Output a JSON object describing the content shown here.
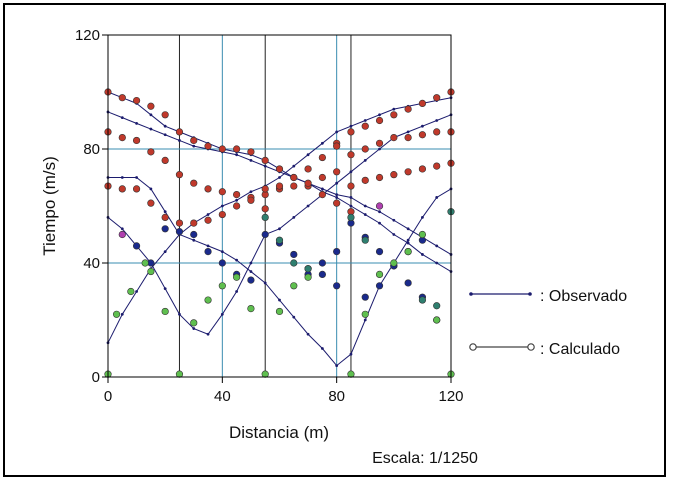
{
  "chart_data": {
    "type": "scatter",
    "title": "",
    "xlabel": "Distancia (m)",
    "ylabel": "Tiempo (m/s)",
    "note": "Escala: 1/1250",
    "xlim": [
      0,
      120
    ],
    "ylim": [
      0,
      120
    ],
    "x_ticks": [
      0,
      40,
      80,
      120
    ],
    "y_ticks": [
      0,
      40,
      80,
      120
    ],
    "gridlines_x": [
      25,
      40,
      55,
      80,
      85
    ],
    "gridlines_y": [
      40,
      80
    ],
    "legend": {
      "position": "right",
      "observado_label": ": Observado",
      "calculado_label": ": Calculado"
    },
    "colors": {
      "observado": "#1c1c6e",
      "grid": "#3a8cb0",
      "calc_red": "#c0392b",
      "calc_navy": "#1a2a8c",
      "calc_green": "#5fbf4f",
      "calc_teal": "#2f7f6f",
      "calc_magenta": "#b040b0"
    },
    "observado": [
      {
        "name": "",
        "points": [
          [
            0,
            100
          ],
          [
            5,
            98
          ],
          [
            10,
            96
          ],
          [
            15,
            92
          ],
          [
            20,
            88
          ],
          [
            25,
            86
          ],
          [
            30,
            84
          ],
          [
            35,
            82
          ],
          [
            40,
            80
          ],
          [
            45,
            79
          ],
          [
            50,
            78
          ],
          [
            55,
            76
          ],
          [
            60,
            73
          ],
          [
            65,
            70
          ],
          [
            70,
            68
          ],
          [
            75,
            65
          ],
          [
            80,
            63
          ],
          [
            85,
            60
          ],
          [
            90,
            57
          ],
          [
            95,
            54
          ],
          [
            100,
            50
          ],
          [
            105,
            47
          ],
          [
            110,
            43
          ],
          [
            115,
            40
          ],
          [
            120,
            37
          ]
        ]
      },
      {
        "name": "",
        "points": [
          [
            0,
            93
          ],
          [
            5,
            91
          ],
          [
            10,
            89
          ],
          [
            15,
            87
          ],
          [
            20,
            85
          ],
          [
            25,
            83
          ],
          [
            30,
            81
          ],
          [
            35,
            80
          ],
          [
            40,
            79
          ],
          [
            45,
            78
          ],
          [
            50,
            76
          ],
          [
            55,
            74
          ],
          [
            60,
            72
          ],
          [
            65,
            70
          ],
          [
            70,
            68
          ],
          [
            75,
            66
          ],
          [
            80,
            64
          ],
          [
            85,
            63
          ],
          [
            90,
            60
          ],
          [
            95,
            58
          ],
          [
            100,
            55
          ],
          [
            105,
            52
          ],
          [
            110,
            49
          ],
          [
            115,
            46
          ],
          [
            120,
            43
          ]
        ]
      },
      {
        "name": "",
        "points": [
          [
            0,
            70
          ],
          [
            5,
            70
          ],
          [
            10,
            70
          ],
          [
            15,
            66
          ],
          [
            20,
            58
          ],
          [
            25,
            50
          ],
          [
            30,
            48
          ],
          [
            35,
            46
          ],
          [
            40,
            44
          ],
          [
            45,
            41
          ],
          [
            50,
            37
          ],
          [
            55,
            33
          ],
          [
            60,
            27
          ],
          [
            65,
            21
          ],
          [
            70,
            15
          ],
          [
            75,
            10
          ],
          [
            80,
            4
          ],
          [
            85,
            8
          ],
          [
            90,
            20
          ],
          [
            95,
            32
          ],
          [
            100,
            40
          ],
          [
            105,
            48
          ],
          [
            110,
            56
          ],
          [
            115,
            63
          ],
          [
            120,
            66
          ]
        ]
      },
      {
        "name": "",
        "points": [
          [
            0,
            56
          ],
          [
            5,
            52
          ],
          [
            10,
            46
          ],
          [
            15,
            40
          ],
          [
            20,
            31
          ],
          [
            25,
            22
          ],
          [
            30,
            17
          ],
          [
            35,
            15
          ],
          [
            40,
            22
          ],
          [
            45,
            30
          ],
          [
            50,
            40
          ],
          [
            55,
            50
          ],
          [
            60,
            52
          ],
          [
            65,
            56
          ],
          [
            70,
            60
          ],
          [
            75,
            64
          ],
          [
            80,
            68
          ],
          [
            85,
            72
          ],
          [
            90,
            76
          ],
          [
            95,
            80
          ],
          [
            100,
            84
          ],
          [
            105,
            86
          ],
          [
            110,
            88
          ],
          [
            115,
            90
          ],
          [
            120,
            92
          ]
        ]
      },
      {
        "name": "",
        "points": [
          [
            0,
            12
          ],
          [
            5,
            22
          ],
          [
            10,
            30
          ],
          [
            15,
            38
          ],
          [
            20,
            44
          ],
          [
            25,
            50
          ],
          [
            30,
            54
          ],
          [
            35,
            57
          ],
          [
            40,
            60
          ],
          [
            45,
            62
          ],
          [
            50,
            65
          ],
          [
            55,
            67
          ],
          [
            60,
            70
          ],
          [
            65,
            74
          ],
          [
            70,
            78
          ],
          [
            75,
            82
          ],
          [
            80,
            86
          ],
          [
            85,
            88
          ],
          [
            90,
            90
          ],
          [
            95,
            92
          ],
          [
            100,
            94
          ],
          [
            105,
            95
          ],
          [
            110,
            96
          ],
          [
            115,
            97
          ],
          [
            120,
            98
          ]
        ]
      }
    ],
    "calculado": [
      {
        "name": "",
        "color": "calc_red",
        "points": [
          [
            0,
            100
          ],
          [
            5,
            98
          ],
          [
            10,
            97
          ],
          [
            15,
            95
          ],
          [
            20,
            92
          ],
          [
            25,
            86
          ],
          [
            30,
            83
          ],
          [
            35,
            81
          ],
          [
            40,
            80
          ],
          [
            45,
            80
          ],
          [
            50,
            79
          ],
          [
            55,
            76
          ],
          [
            60,
            73
          ],
          [
            65,
            70
          ],
          [
            70,
            67
          ],
          [
            75,
            64
          ],
          [
            80,
            61
          ],
          [
            85,
            58
          ]
        ]
      },
      {
        "name": "",
        "color": "calc_red",
        "points": [
          [
            0,
            86
          ],
          [
            5,
            84
          ],
          [
            10,
            83
          ],
          [
            15,
            79
          ],
          [
            20,
            76
          ],
          [
            25,
            71
          ],
          [
            30,
            68
          ],
          [
            35,
            66
          ],
          [
            40,
            65
          ],
          [
            45,
            64
          ],
          [
            50,
            63
          ],
          [
            55,
            59
          ]
        ]
      },
      {
        "name": "",
        "color": "calc_red",
        "points": [
          [
            0,
            67
          ],
          [
            5,
            66
          ],
          [
            10,
            66
          ],
          [
            15,
            61
          ],
          [
            20,
            56
          ],
          [
            25,
            54
          ],
          [
            30,
            54
          ],
          [
            35,
            55
          ],
          [
            40,
            57
          ],
          [
            45,
            60
          ],
          [
            50,
            62
          ],
          [
            55,
            64
          ],
          [
            60,
            66
          ],
          [
            65,
            67
          ],
          [
            70,
            68
          ],
          [
            75,
            70
          ],
          [
            80,
            72
          ]
        ]
      },
      {
        "name": "",
        "color": "calc_red",
        "points": [
          [
            80,
            82
          ],
          [
            85,
            86
          ],
          [
            90,
            88
          ],
          [
            95,
            90
          ],
          [
            100,
            92
          ],
          [
            105,
            94
          ],
          [
            110,
            96
          ],
          [
            115,
            98
          ],
          [
            120,
            100
          ]
        ]
      },
      {
        "name": "",
        "color": "calc_red",
        "points": [
          [
            55,
            66
          ],
          [
            60,
            67
          ],
          [
            65,
            70
          ],
          [
            70,
            73
          ],
          [
            75,
            77
          ],
          [
            80,
            81
          ],
          [
            85,
            78
          ],
          [
            90,
            80
          ],
          [
            95,
            82
          ],
          [
            100,
            84
          ],
          [
            105,
            84
          ],
          [
            110,
            85
          ],
          [
            115,
            86
          ],
          [
            120,
            86
          ]
        ]
      },
      {
        "name": "",
        "color": "calc_red",
        "points": [
          [
            85,
            67
          ],
          [
            90,
            69
          ],
          [
            95,
            70
          ],
          [
            100,
            71
          ],
          [
            105,
            72
          ],
          [
            110,
            73
          ],
          [
            115,
            74
          ],
          [
            120,
            75
          ]
        ]
      },
      {
        "name": "",
        "color": "calc_navy",
        "points": [
          [
            10,
            46
          ],
          [
            15,
            40
          ],
          [
            20,
            52
          ],
          [
            25,
            51
          ],
          [
            30,
            50
          ],
          [
            35,
            44
          ],
          [
            40,
            40
          ],
          [
            45,
            36
          ],
          [
            50,
            34
          ]
        ]
      },
      {
        "name": "",
        "color": "calc_navy",
        "points": [
          [
            55,
            50
          ],
          [
            60,
            47
          ],
          [
            65,
            43
          ],
          [
            70,
            38
          ],
          [
            75,
            36
          ],
          [
            80,
            32
          ],
          [
            85,
            54
          ],
          [
            90,
            49
          ],
          [
            95,
            44
          ],
          [
            100,
            39
          ],
          [
            105,
            33
          ],
          [
            110,
            28
          ],
          [
            115,
            20
          ]
        ]
      },
      {
        "name": "",
        "color": "calc_navy",
        "points": [
          [
            70,
            36
          ],
          [
            75,
            40
          ],
          [
            80,
            44
          ],
          [
            90,
            28
          ],
          [
            95,
            32
          ],
          [
            100,
            39
          ],
          [
            105,
            44
          ],
          [
            110,
            48
          ]
        ]
      },
      {
        "name": "",
        "color": "calc_green",
        "points": [
          [
            0,
            1
          ],
          [
            3,
            22
          ],
          [
            8,
            30
          ],
          [
            13,
            40
          ],
          [
            15,
            37
          ],
          [
            20,
            23
          ],
          [
            25,
            1
          ],
          [
            30,
            19
          ],
          [
            35,
            27
          ],
          [
            40,
            32
          ],
          [
            45,
            35
          ],
          [
            50,
            24
          ],
          [
            55,
            1
          ],
          [
            60,
            23
          ],
          [
            65,
            32
          ],
          [
            70,
            35
          ]
        ]
      },
      {
        "name": "",
        "color": "calc_green",
        "points": [
          [
            85,
            1
          ],
          [
            90,
            22
          ],
          [
            95,
            36
          ],
          [
            100,
            40
          ],
          [
            105,
            44
          ],
          [
            110,
            50
          ],
          [
            115,
            20
          ],
          [
            120,
            1
          ]
        ]
      },
      {
        "name": "",
        "color": "calc_teal",
        "points": [
          [
            55,
            56
          ],
          [
            60,
            48
          ],
          [
            65,
            40
          ],
          [
            70,
            38
          ],
          [
            85,
            56
          ],
          [
            90,
            48
          ],
          [
            110,
            27
          ],
          [
            115,
            25
          ],
          [
            120,
            58
          ]
        ]
      },
      {
        "name": "",
        "color": "calc_magenta",
        "points": [
          [
            5,
            50
          ],
          [
            95,
            60
          ]
        ]
      }
    ]
  }
}
